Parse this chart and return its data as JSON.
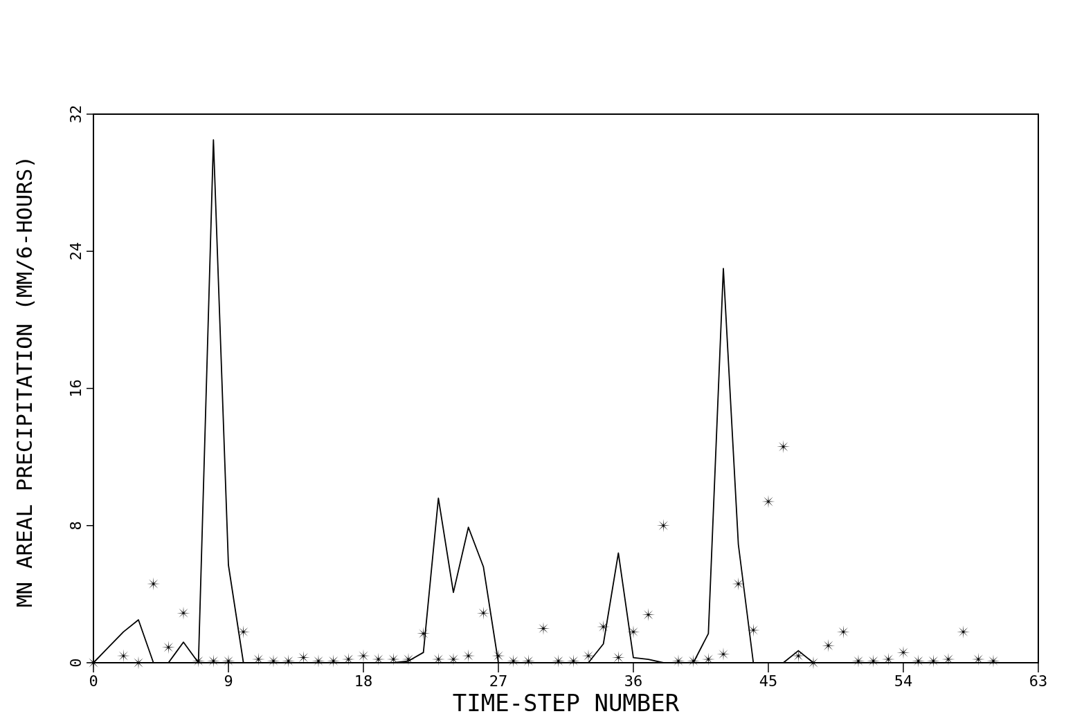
{
  "chart_data": {
    "type": "line",
    "xlabel": "TIME-STEP NUMBER",
    "ylabel": "MN AREAL PRECIPITATION (MM/6-HOURS)",
    "xlim": [
      0,
      63
    ],
    "xticks": [
      0,
      9,
      18,
      27,
      36,
      45,
      54,
      63
    ],
    "ylim": [
      0,
      32
    ],
    "yticks": [
      0,
      8,
      16,
      24,
      32
    ],
    "grid": false,
    "series": [
      {
        "color": "#000000",
        "marker": "none",
        "line_style": "solid",
        "x": [
          0,
          1,
          2,
          3,
          4,
          5,
          6,
          7,
          8,
          9,
          10,
          11,
          12,
          13,
          14,
          15,
          16,
          17,
          18,
          19,
          20,
          21,
          22,
          23,
          24,
          25,
          26,
          27,
          28,
          29,
          30,
          31,
          32,
          33,
          34,
          35,
          36,
          37,
          38,
          39,
          40,
          41,
          42,
          43,
          44,
          45,
          46,
          47,
          48,
          49,
          50,
          51,
          52,
          53,
          54,
          55,
          56,
          57,
          58,
          59,
          60,
          61,
          62,
          63
        ],
        "values": [
          0,
          0.9,
          1.8,
          2.5,
          0,
          0,
          1.2,
          0,
          30.5,
          5.7,
          0,
          0,
          0,
          0,
          0,
          0,
          0,
          0,
          0,
          0,
          0,
          0.1,
          0.6,
          9.6,
          4.1,
          7.9,
          5.6,
          0,
          0,
          0,
          0,
          0,
          0,
          0,
          1.1,
          6.4,
          0.3,
          0.2,
          0,
          0,
          0,
          1.7,
          23,
          6.9,
          0,
          0,
          0,
          0.7,
          0,
          0,
          0,
          0,
          0,
          0,
          0,
          0,
          0,
          0,
          0,
          0,
          0,
          0,
          0,
          0
        ]
      },
      {
        "type": "scatter",
        "color": "#000000",
        "marker": "star",
        "x": [
          0,
          2,
          3,
          4,
          5,
          6,
          7,
          8,
          9,
          10,
          11,
          12,
          13,
          14,
          15,
          16,
          17,
          18,
          19,
          20,
          21,
          22,
          23,
          24,
          25,
          26,
          27,
          28,
          29,
          30,
          31,
          32,
          33,
          34,
          35,
          36,
          37,
          38,
          39,
          40,
          41,
          42,
          43,
          44,
          45,
          46,
          47,
          48,
          49,
          50,
          51,
          52,
          53,
          54,
          55,
          56,
          57,
          58,
          59,
          60
        ],
        "values": [
          0,
          0.4,
          0,
          4.6,
          0.9,
          2.9,
          0.1,
          0.1,
          0.1,
          1.8,
          0.2,
          0.1,
          0.1,
          0.3,
          0.1,
          0.1,
          0.2,
          0.4,
          0.2,
          0.2,
          0.2,
          1.7,
          0.2,
          0.2,
          0.4,
          2.9,
          0.4,
          0.1,
          0.1,
          2,
          0.1,
          0.1,
          0.4,
          2.1,
          0.3,
          1.8,
          2.8,
          8,
          0.1,
          0.1,
          0.2,
          0.5,
          4.6,
          1.9,
          9.4,
          12.6,
          0.4,
          0,
          1,
          1.8,
          0.1,
          0.1,
          0.2,
          0.6,
          0.1,
          0.1,
          0.2,
          1.8,
          0.2,
          0.1
        ]
      }
    ]
  }
}
